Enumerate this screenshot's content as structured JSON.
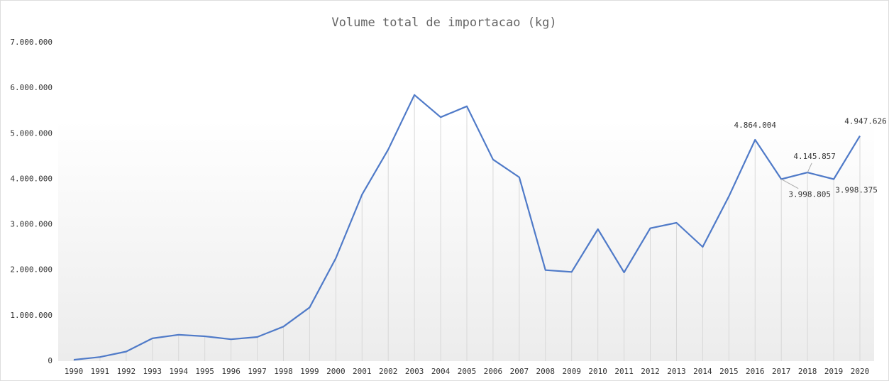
{
  "chart_data": {
    "type": "line",
    "title": "Volume total de importacao (kg)",
    "categories": [
      "1990",
      "1991",
      "1992",
      "1993",
      "1994",
      "1995",
      "1996",
      "1997",
      "1998",
      "1999",
      "2000",
      "2001",
      "2002",
      "2003",
      "2004",
      "2005",
      "2006",
      "2007",
      "2008",
      "2009",
      "2010",
      "2011",
      "2012",
      "2013",
      "2014",
      "2015",
      "2016",
      "2017",
      "2018",
      "2019",
      "2020"
    ],
    "series": [
      {
        "color": "#4f7ac8",
        "values": [
          30000,
          90000,
          210000,
          500000,
          580000,
          545000,
          480000,
          530000,
          760000,
          1180000,
          2260000,
          3660000,
          4650000,
          5850000,
          5360000,
          5600000,
          4430000,
          4040000,
          2000000,
          1960000,
          2900000,
          1950000,
          2920000,
          3040000,
          2510000,
          3620000,
          4864004,
          3998805,
          4145857,
          3998375,
          4947626
        ],
        "value_labels": [
          null,
          null,
          null,
          null,
          null,
          null,
          null,
          null,
          null,
          null,
          null,
          null,
          null,
          null,
          null,
          null,
          null,
          null,
          null,
          null,
          null,
          null,
          null,
          null,
          null,
          null,
          "4.864.004",
          "3.998.805",
          "4.145.857",
          "3.998.375",
          "4.947.626"
        ]
      }
    ],
    "ylim": [
      0,
      7000000
    ],
    "yticks": [
      0,
      {
        "value": 1000000,
        "label": "1.000.000"
      },
      {
        "value": 2000000,
        "label": "2.000.000"
      },
      {
        "value": 3000000,
        "label": "3.000.000"
      },
      {
        "value": 4000000,
        "label": "4.000.000"
      },
      {
        "value": 5000000,
        "label": "5.000.000"
      },
      {
        "value": 6000000,
        "label": "6.000.000"
      },
      {
        "value": 7000000,
        "label": "7.000.000"
      }
    ],
    "drop_lines": true
  }
}
